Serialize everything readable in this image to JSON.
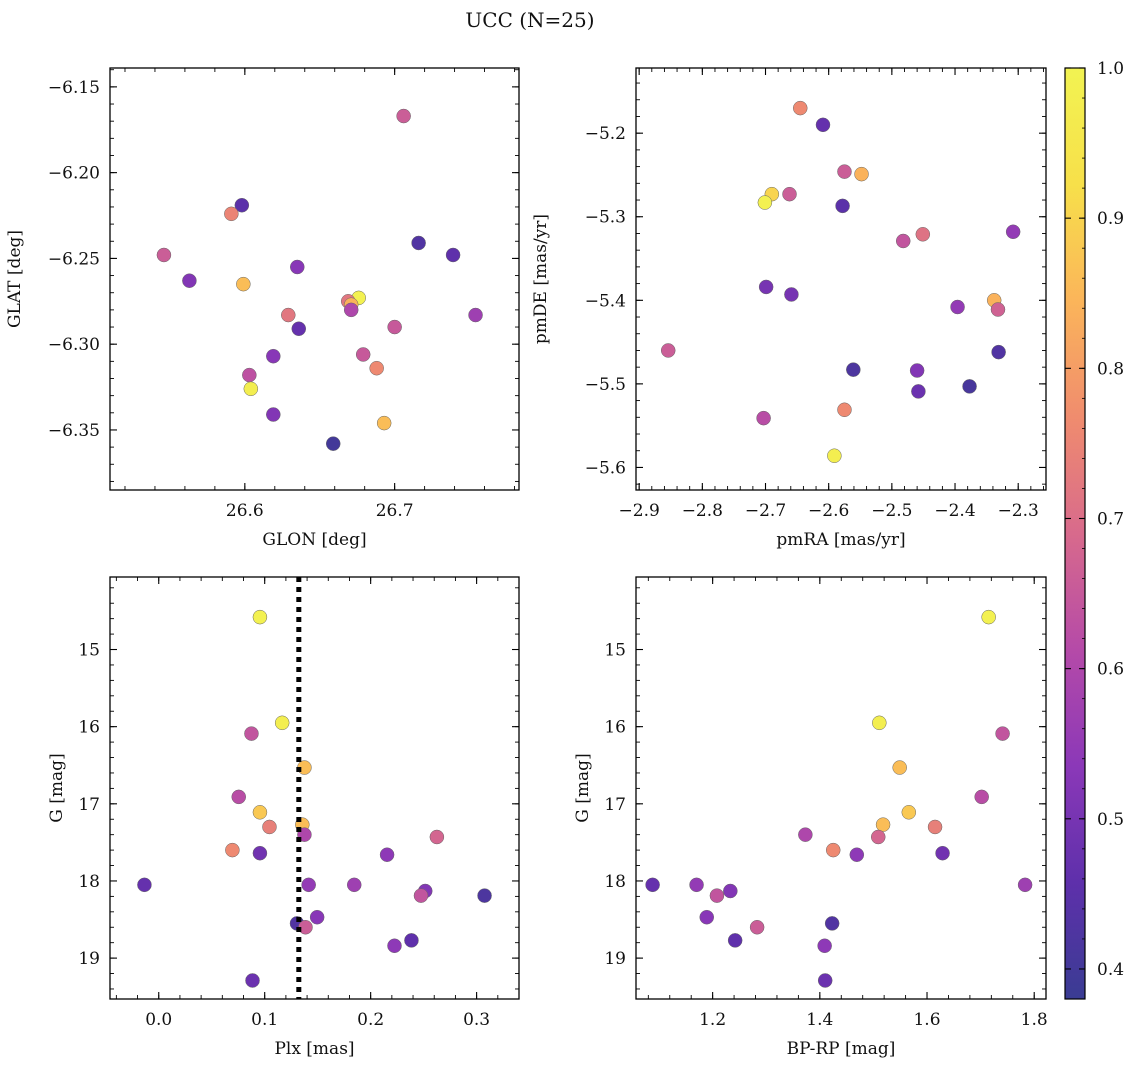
{
  "figure": {
    "title": "UCC (N=25)"
  },
  "chart_data": [
    {
      "type": "scatter",
      "id": "glon-glat",
      "xlabel": "GLON [deg]",
      "ylabel": "GLAT [deg]",
      "xlim": [
        26.51,
        26.783
      ],
      "ylim": [
        -6.385,
        -6.139
      ],
      "y_inverted": false,
      "xticks": [
        26.6,
        26.7
      ],
      "xtick_labels": [
        "26.6",
        "26.7"
      ],
      "yticks": [
        -6.15,
        -6.2,
        -6.25,
        -6.3,
        -6.35
      ],
      "ytick_labels": [
        "−6.15",
        "−6.20",
        "−6.25",
        "−6.30",
        "−6.35"
      ],
      "points": [
        {
          "x": 26.706,
          "y": -6.167,
          "c": 0.66
        },
        {
          "x": 26.598,
          "y": -6.219,
          "c": 0.45
        },
        {
          "x": 26.591,
          "y": -6.224,
          "c": 0.75
        },
        {
          "x": 26.716,
          "y": -6.241,
          "c": 0.43
        },
        {
          "x": 26.546,
          "y": -6.248,
          "c": 0.66
        },
        {
          "x": 26.739,
          "y": -6.248,
          "c": 0.46
        },
        {
          "x": 26.635,
          "y": -6.255,
          "c": 0.53
        },
        {
          "x": 26.563,
          "y": -6.263,
          "c": 0.52
        },
        {
          "x": 26.599,
          "y": -6.265,
          "c": 0.86
        },
        {
          "x": 26.676,
          "y": -6.273,
          "c": 0.99
        },
        {
          "x": 26.669,
          "y": -6.275,
          "c": 0.72
        },
        {
          "x": 26.671,
          "y": -6.277,
          "c": 0.84
        },
        {
          "x": 26.671,
          "y": -6.28,
          "c": 0.6
        },
        {
          "x": 26.629,
          "y": -6.283,
          "c": 0.72
        },
        {
          "x": 26.754,
          "y": -6.283,
          "c": 0.57
        },
        {
          "x": 26.636,
          "y": -6.291,
          "c": 0.47
        },
        {
          "x": 26.7,
          "y": -6.29,
          "c": 0.65
        },
        {
          "x": 26.679,
          "y": -6.306,
          "c": 0.65
        },
        {
          "x": 26.619,
          "y": -6.307,
          "c": 0.53
        },
        {
          "x": 26.688,
          "y": -6.314,
          "c": 0.76
        },
        {
          "x": 26.603,
          "y": -6.318,
          "c": 0.63
        },
        {
          "x": 26.604,
          "y": -6.326,
          "c": 0.98
        },
        {
          "x": 26.619,
          "y": -6.341,
          "c": 0.52
        },
        {
          "x": 26.693,
          "y": -6.346,
          "c": 0.86
        },
        {
          "x": 26.659,
          "y": -6.358,
          "c": 0.4
        }
      ]
    },
    {
      "type": "scatter",
      "id": "pmra-pmde",
      "xlabel": "pmRA [mas/yr]",
      "ylabel": "pmDE [mas/yr]",
      "xlim": [
        -2.905,
        -2.256
      ],
      "ylim": [
        -5.627,
        -5.122
      ],
      "y_inverted": false,
      "xticks": [
        -2.9,
        -2.8,
        -2.7,
        -2.6,
        -2.5,
        -2.4,
        -2.3
      ],
      "xtick_labels": [
        "−2.9",
        "−2.8",
        "−2.7",
        "−2.6",
        "−2.5",
        "−2.4",
        "−2.3"
      ],
      "yticks": [
        -5.2,
        -5.3,
        -5.4,
        -5.5,
        -5.6
      ],
      "ytick_labels": [
        "−5.2",
        "−5.3",
        "−5.4",
        "−5.5",
        "−5.6"
      ],
      "points": [
        {
          "x": -2.645,
          "y": -5.17,
          "c": 0.76
        },
        {
          "x": -2.609,
          "y": -5.19,
          "c": 0.47
        },
        {
          "x": -2.575,
          "y": -5.246,
          "c": 0.66
        },
        {
          "x": -2.548,
          "y": -5.249,
          "c": 0.84
        },
        {
          "x": -2.69,
          "y": -5.273,
          "c": 0.9
        },
        {
          "x": -2.662,
          "y": -5.273,
          "c": 0.66
        },
        {
          "x": -2.701,
          "y": -5.283,
          "c": 0.99
        },
        {
          "x": -2.578,
          "y": -5.287,
          "c": 0.45
        },
        {
          "x": -2.308,
          "y": -5.318,
          "c": 0.55
        },
        {
          "x": -2.451,
          "y": -5.321,
          "c": 0.71
        },
        {
          "x": -2.482,
          "y": -5.329,
          "c": 0.64
        },
        {
          "x": -2.699,
          "y": -5.384,
          "c": 0.5
        },
        {
          "x": -2.659,
          "y": -5.393,
          "c": 0.5
        },
        {
          "x": -2.338,
          "y": -5.4,
          "c": 0.84
        },
        {
          "x": -2.396,
          "y": -5.408,
          "c": 0.55
        },
        {
          "x": -2.332,
          "y": -5.411,
          "c": 0.67
        },
        {
          "x": -2.331,
          "y": -5.462,
          "c": 0.43
        },
        {
          "x": -2.854,
          "y": -5.46,
          "c": 0.66
        },
        {
          "x": -2.561,
          "y": -5.483,
          "c": 0.42
        },
        {
          "x": -2.46,
          "y": -5.484,
          "c": 0.52
        },
        {
          "x": -2.377,
          "y": -5.503,
          "c": 0.41
        },
        {
          "x": -2.458,
          "y": -5.509,
          "c": 0.48
        },
        {
          "x": -2.575,
          "y": -5.531,
          "c": 0.76
        },
        {
          "x": -2.703,
          "y": -5.541,
          "c": 0.62
        },
        {
          "x": -2.591,
          "y": -5.586,
          "c": 0.98
        }
      ]
    },
    {
      "type": "scatter",
      "id": "plx-g",
      "xlabel": "Plx [mas]",
      "ylabel": "G [mag]",
      "xlim": [
        -0.046,
        0.34
      ],
      "ylim": [
        14.06,
        19.53
      ],
      "y_inverted": true,
      "xticks": [
        0.0,
        0.1,
        0.2,
        0.3
      ],
      "xtick_labels": [
        "0.0",
        "0.1",
        "0.2",
        "0.3"
      ],
      "yticks": [
        15,
        16,
        17,
        18,
        19
      ],
      "ytick_labels": [
        "15",
        "16",
        "17",
        "18",
        "19"
      ],
      "vline": {
        "x": 0.1322,
        "style": "dotted",
        "color": "#000000"
      },
      "points": [
        {
          "x": 0.0955,
          "y": 14.58,
          "c": 0.99
        },
        {
          "x": 0.1165,
          "y": 15.95,
          "c": 0.98
        },
        {
          "x": 0.0875,
          "y": 16.09,
          "c": 0.64
        },
        {
          "x": 0.1375,
          "y": 16.53,
          "c": 0.86
        },
        {
          "x": 0.0755,
          "y": 16.91,
          "c": 0.62
        },
        {
          "x": 0.0955,
          "y": 17.11,
          "c": 0.88
        },
        {
          "x": 0.1355,
          "y": 17.27,
          "c": 0.86
        },
        {
          "x": 0.1045,
          "y": 17.3,
          "c": 0.74
        },
        {
          "x": 0.1375,
          "y": 17.4,
          "c": 0.6
        },
        {
          "x": 0.2625,
          "y": 17.43,
          "c": 0.68
        },
        {
          "x": 0.0695,
          "y": 17.6,
          "c": 0.76
        },
        {
          "x": 0.0955,
          "y": 17.64,
          "c": 0.49
        },
        {
          "x": 0.2155,
          "y": 17.66,
          "c": 0.54
        },
        {
          "x": -0.0135,
          "y": 18.05,
          "c": 0.47
        },
        {
          "x": 0.1415,
          "y": 18.05,
          "c": 0.55
        },
        {
          "x": 0.1845,
          "y": 18.05,
          "c": 0.57
        },
        {
          "x": 0.2515,
          "y": 18.13,
          "c": 0.52
        },
        {
          "x": 0.2475,
          "y": 18.19,
          "c": 0.64
        },
        {
          "x": 0.3075,
          "y": 18.19,
          "c": 0.42
        },
        {
          "x": 0.1495,
          "y": 18.47,
          "c": 0.53
        },
        {
          "x": 0.1305,
          "y": 18.55,
          "c": 0.43
        },
        {
          "x": 0.1385,
          "y": 18.6,
          "c": 0.66
        },
        {
          "x": 0.2385,
          "y": 18.77,
          "c": 0.46
        },
        {
          "x": 0.2225,
          "y": 18.84,
          "c": 0.54
        },
        {
          "x": 0.0885,
          "y": 19.29,
          "c": 0.48
        }
      ]
    },
    {
      "type": "scatter",
      "id": "bprp-g",
      "xlabel": "BP-RP [mag]",
      "ylabel": "G [mag]",
      "xlim": [
        1.057,
        1.822
      ],
      "ylim": [
        14.06,
        19.53
      ],
      "y_inverted": true,
      "xticks": [
        1.2,
        1.4,
        1.6,
        1.8
      ],
      "xtick_labels": [
        "1.2",
        "1.4",
        "1.6",
        "1.8"
      ],
      "yticks": [
        15,
        16,
        17,
        18,
        19
      ],
      "ytick_labels": [
        "15",
        "16",
        "17",
        "18",
        "19"
      ],
      "points": [
        {
          "x": 1.715,
          "y": 14.58,
          "c": 0.99
        },
        {
          "x": 1.511,
          "y": 15.95,
          "c": 0.98
        },
        {
          "x": 1.741,
          "y": 16.09,
          "c": 0.64
        },
        {
          "x": 1.549,
          "y": 16.53,
          "c": 0.86
        },
        {
          "x": 1.702,
          "y": 16.91,
          "c": 0.62
        },
        {
          "x": 1.566,
          "y": 17.11,
          "c": 0.88
        },
        {
          "x": 1.518,
          "y": 17.27,
          "c": 0.86
        },
        {
          "x": 1.615,
          "y": 17.3,
          "c": 0.74
        },
        {
          "x": 1.373,
          "y": 17.4,
          "c": 0.6
        },
        {
          "x": 1.509,
          "y": 17.43,
          "c": 0.68
        },
        {
          "x": 1.425,
          "y": 17.6,
          "c": 0.76
        },
        {
          "x": 1.629,
          "y": 17.64,
          "c": 0.49
        },
        {
          "x": 1.469,
          "y": 17.66,
          "c": 0.54
        },
        {
          "x": 1.088,
          "y": 18.05,
          "c": 0.47
        },
        {
          "x": 1.17,
          "y": 18.05,
          "c": 0.55
        },
        {
          "x": 1.783,
          "y": 18.05,
          "c": 0.57
        },
        {
          "x": 1.233,
          "y": 18.13,
          "c": 0.52
        },
        {
          "x": 1.208,
          "y": 18.19,
          "c": 0.64
        },
        {
          "x": 1.189,
          "y": 18.47,
          "c": 0.53
        },
        {
          "x": 1.423,
          "y": 18.55,
          "c": 0.43
        },
        {
          "x": 1.283,
          "y": 18.6,
          "c": 0.66
        },
        {
          "x": 1.242,
          "y": 18.77,
          "c": 0.46
        },
        {
          "x": 1.409,
          "y": 18.84,
          "c": 0.54
        },
        {
          "x": 1.41,
          "y": 19.29,
          "c": 0.48
        }
      ]
    }
  ],
  "colorbar": {
    "colormap": "plasma",
    "range": [
      0.38,
      1.0
    ],
    "ticks": [
      0.4,
      0.5,
      0.6,
      0.7,
      0.8,
      0.9,
      1.0
    ],
    "tick_labels": [
      "0.4",
      "0.5",
      "0.6",
      "0.7",
      "0.8",
      "0.9",
      "1.0"
    ],
    "stops": [
      "#3a3c93",
      "#5e30ab",
      "#8b38b8",
      "#b54aa8",
      "#d86a8c",
      "#f08c6e",
      "#fbb55a",
      "#f7e04a",
      "#f2f352"
    ]
  }
}
